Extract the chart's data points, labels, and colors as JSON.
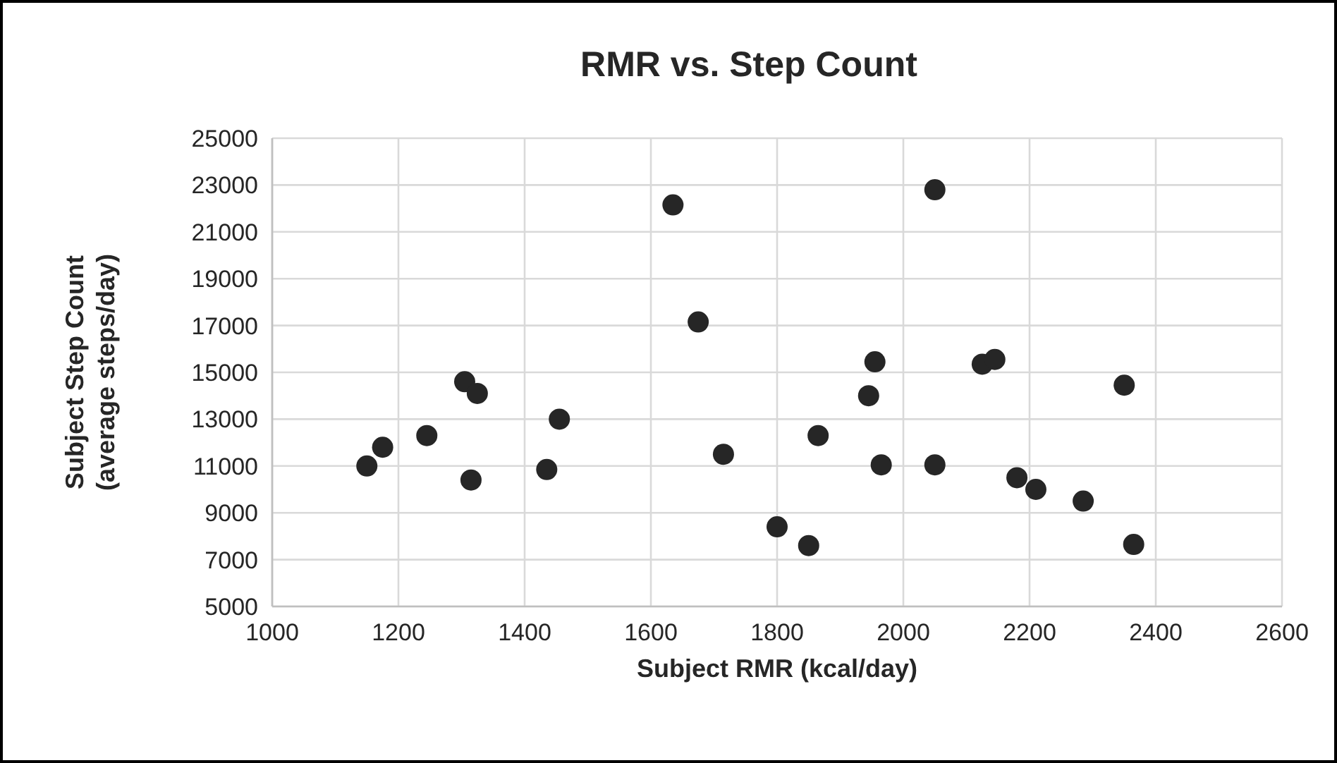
{
  "chart_data": {
    "type": "scatter",
    "title": "RMR vs. Step Count",
    "xlabel": "Subject RMR (kcal/day)",
    "ylabel": "Subject Step Count\n(average steps/day)",
    "xlim": [
      1000,
      2600
    ],
    "xticks": [
      1000,
      1200,
      1400,
      1600,
      1800,
      2000,
      2200,
      2400,
      2600
    ],
    "ylim": [
      5000,
      25000
    ],
    "yticks": [
      5000,
      7000,
      9000,
      11000,
      13000,
      15000,
      17000,
      19000,
      21000,
      23000,
      25000
    ],
    "grid": true,
    "marker": "circle",
    "series": [
      {
        "color": "#262626",
        "x": [
          1150,
          1175,
          1245,
          1305,
          1325,
          1315,
          1455,
          1435,
          1635,
          1675,
          1715,
          2050,
          1955,
          1945,
          1865,
          1965,
          2050,
          1800,
          1850,
          2125,
          2145,
          2350,
          2180,
          2210,
          2285,
          2365
        ],
        "values": [
          11000,
          11800,
          12300,
          14600,
          14100,
          10400,
          13000,
          10850,
          22150,
          17150,
          11500,
          22800,
          15450,
          14000,
          12300,
          11050,
          11050,
          8400,
          7600,
          15350,
          15550,
          14450,
          10500,
          10000,
          9500,
          7650
        ]
      }
    ]
  }
}
